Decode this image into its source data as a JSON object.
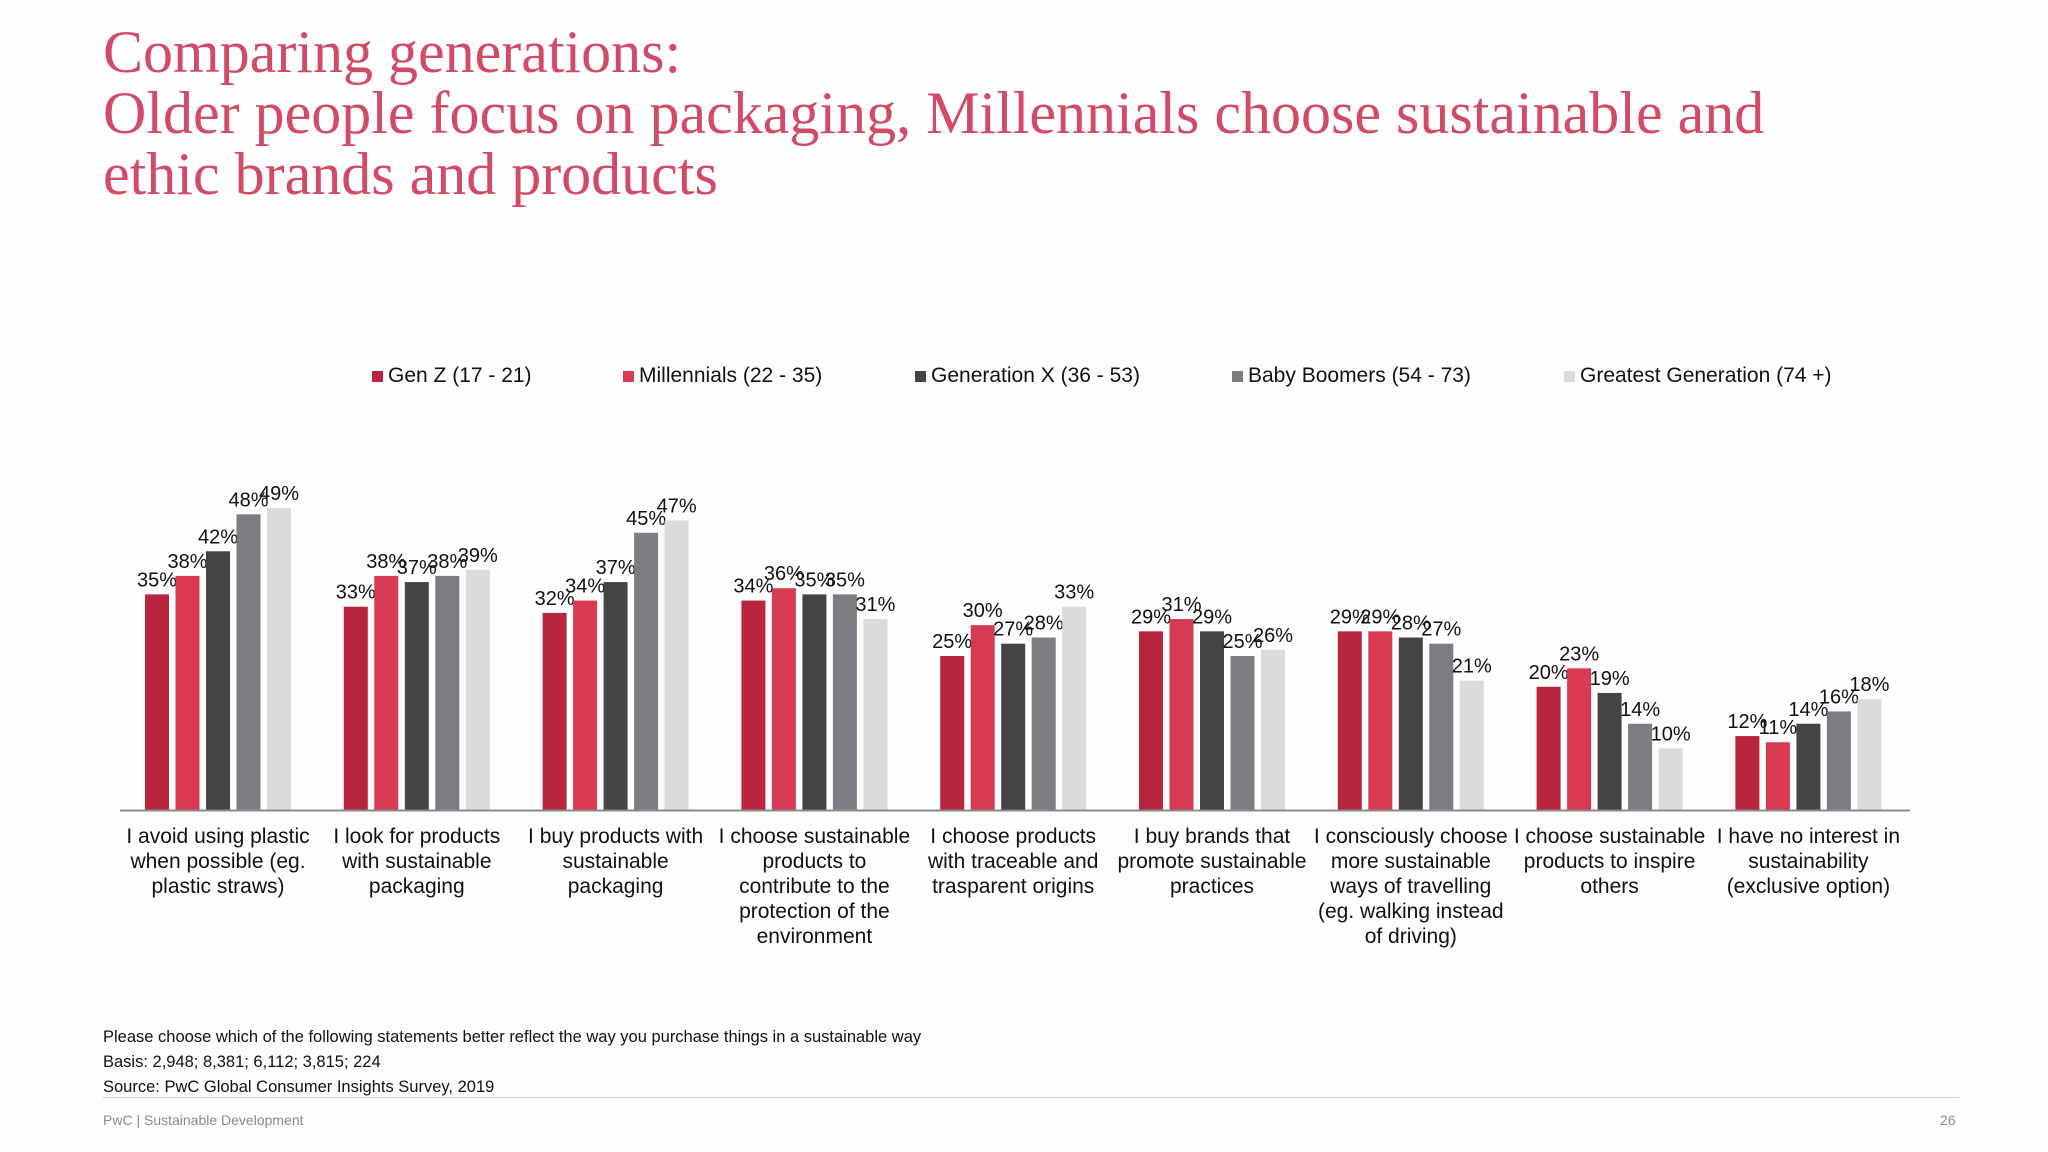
{
  "title": [
    "Comparing generations:",
    "Older people focus on packaging, Millennials choose sustainable and",
    "ethic brands and products"
  ],
  "chart_data": {
    "type": "bar",
    "title": "",
    "xlabel": "",
    "ylabel": "",
    "ylim": [
      0,
      50
    ],
    "grid": false,
    "legend_position": "top",
    "categories": [
      "I avoid using plastic when possible (eg. plastic straws)",
      "I look for products with sustainable packaging",
      "I buy products with sustainable packaging",
      "I choose sustainable products to contribute to the protection of the environment",
      "I choose products with traceable and trasparent origins",
      "I buy brands that promote sustainable practices",
      "I consciously choose more sustainable ways of travelling (eg. walking instead of driving)",
      "I choose sustainable products to inspire others",
      "I have no interest in sustainability (exclusive option)"
    ],
    "category_lines": [
      [
        "I avoid using plastic",
        "when possible (eg.",
        "plastic straws)"
      ],
      [
        "I look for products",
        "with sustainable",
        "packaging"
      ],
      [
        "I buy products with",
        "sustainable",
        "packaging"
      ],
      [
        "I choose sustainable",
        "products to",
        "contribute to the",
        "protection of the",
        "environment"
      ],
      [
        "I choose products",
        "with traceable and",
        "trasparent origins"
      ],
      [
        "I buy brands that",
        "promote sustainable",
        "practices"
      ],
      [
        "I consciously choose",
        "more sustainable",
        "ways of travelling",
        "(eg. walking instead",
        "of driving)"
      ],
      [
        "I choose sustainable",
        "products to inspire",
        "others"
      ],
      [
        "I have no interest in",
        "sustainability",
        "(exclusive option)"
      ]
    ],
    "value_suffix": "%",
    "series": [
      {
        "name": "Gen Z (17 - 21)",
        "color": "#b8253f",
        "values": [
          35,
          33,
          32,
          34,
          25,
          29,
          29,
          20,
          12
        ]
      },
      {
        "name": "Millennials (22 - 35)",
        "color": "#d83a53",
        "values": [
          38,
          38,
          34,
          36,
          30,
          31,
          29,
          23,
          11
        ]
      },
      {
        "name": "Generation X (36 - 53)",
        "color": "#454345",
        "values": [
          42,
          37,
          37,
          35,
          27,
          29,
          28,
          19,
          14
        ]
      },
      {
        "name": "Baby Boomers (54 - 73)",
        "color": "#7e7c80",
        "values": [
          48,
          38,
          45,
          35,
          28,
          25,
          27,
          14,
          16
        ]
      },
      {
        "name": "Greatest Generation (74 +)",
        "color": "#dcdadd",
        "values": [
          49,
          39,
          47,
          31,
          33,
          26,
          21,
          10,
          18
        ]
      }
    ]
  },
  "footer": {
    "question": "Please choose which of the following statements better reflect the way you purchase things in a sustainable way",
    "basis": "Basis: 2,948; 8,381; 6,112; 3,815; 224",
    "source": "Source:  PwC Global Consumer Insights Survey, 2019",
    "brand": "PwC | Sustainable Development",
    "page_number": "26"
  }
}
